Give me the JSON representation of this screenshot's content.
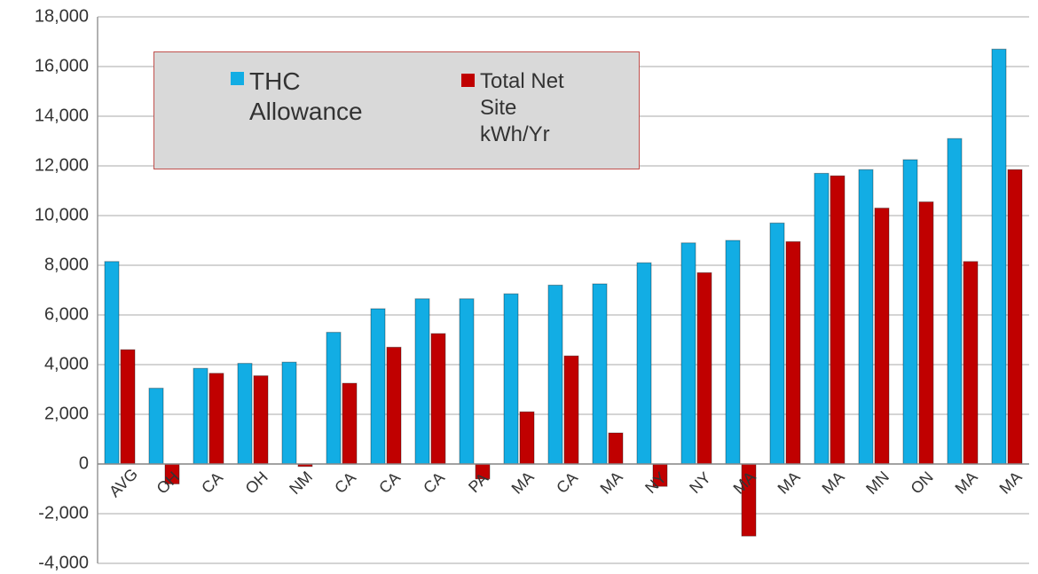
{
  "chart_data": {
    "type": "bar",
    "categories": [
      "AVG",
      "OH",
      "CA",
      "OH",
      "NM",
      "CA",
      "CA",
      "CA",
      "PA",
      "MA",
      "CA",
      "MA",
      "NY",
      "NY",
      "MA",
      "MA",
      "MA",
      "MN",
      "ON",
      "MA",
      "MA"
    ],
    "series": [
      {
        "name": "THC Allowance",
        "color": "#12ade4",
        "values": [
          8150,
          3050,
          3850,
          4050,
          4100,
          5300,
          6250,
          6650,
          6650,
          6850,
          7200,
          7250,
          8100,
          8900,
          9000,
          9700,
          11700,
          11850,
          12250,
          13100,
          16700
        ]
      },
      {
        "name": "Total Net Site kWh/Yr",
        "color": "#c00000",
        "values": [
          4600,
          -800,
          3650,
          3550,
          -100,
          3250,
          4700,
          5250,
          -600,
          2100,
          4350,
          1250,
          -900,
          7700,
          -2900,
          8950,
          11600,
          10300,
          10550,
          8150,
          11850
        ]
      }
    ],
    "ylim": [
      -4000,
      18000
    ],
    "yticks": [
      {
        "value": -4000,
        "label": "-4,000"
      },
      {
        "value": -2000,
        "label": "-2,000"
      },
      0,
      {
        "value": 2000,
        "label": "2,000"
      },
      {
        "value": 4000,
        "label": "4,000"
      },
      {
        "value": 6000,
        "label": "6,000"
      },
      {
        "value": 8000,
        "label": "8,000"
      },
      {
        "value": 10000,
        "label": "10,000"
      },
      {
        "value": 12000,
        "label": "12,000"
      },
      {
        "value": 14000,
        "label": "14,000"
      },
      {
        "value": 16000,
        "label": "16,000"
      },
      {
        "value": 18000,
        "label": "18,000"
      }
    ],
    "grid": true
  }
}
